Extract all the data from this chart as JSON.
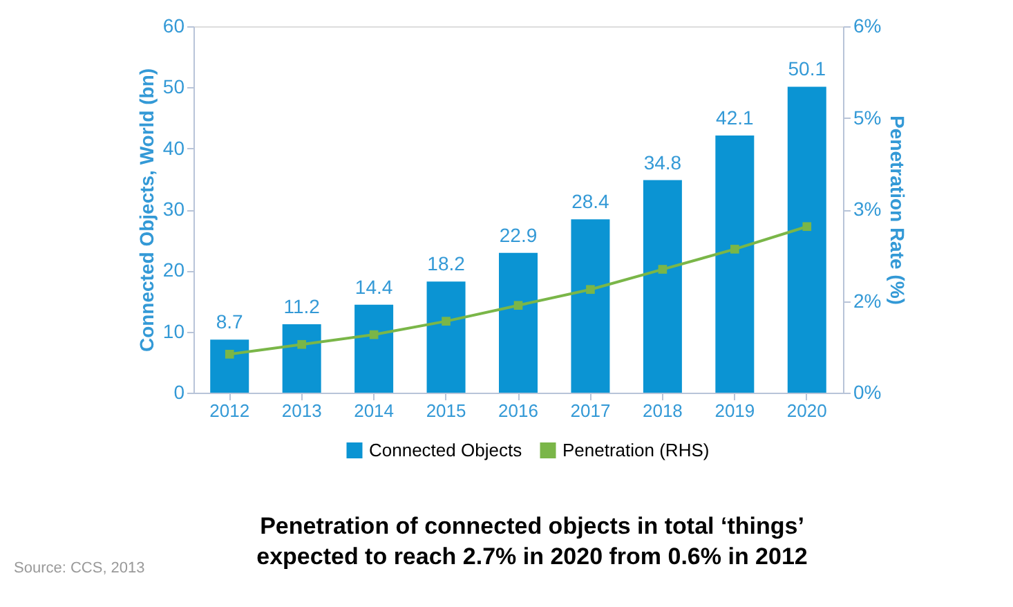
{
  "chart_data": {
    "type": "bar",
    "title": "Penetration of connected objects in total ‘things’\nexpected to reach 2.7% in 2020 from 0.6% in 2012",
    "categories": [
      "2012",
      "2013",
      "2014",
      "2015",
      "2016",
      "2017",
      "2018",
      "2019",
      "2020"
    ],
    "series": [
      {
        "name": "Connected Objects",
        "color": "#0b94d3",
        "values": [
          8.7,
          11.2,
          14.4,
          18.2,
          22.9,
          28.4,
          34.8,
          42.1,
          50.1
        ],
        "value_labels": [
          "8.7",
          "11.2",
          "14.4",
          "18.2",
          "22.9",
          "28.4",
          "34.8",
          "42.1",
          "50.1"
        ]
      },
      {
        "name": "Penetration (RHS)",
        "type": "line",
        "axis": "y2",
        "color": "#7ab648",
        "marker": "square",
        "values": [
          0.63,
          0.79,
          0.95,
          1.17,
          1.43,
          1.69,
          2.02,
          2.35,
          2.72
        ]
      }
    ],
    "ylabel": "Connected Objects, World (bn)",
    "y2label": "Penetration Rate (%)",
    "ylim": [
      0,
      60
    ],
    "yticks": [
      0,
      10,
      20,
      30,
      40,
      50,
      60
    ],
    "y2lim": [
      0,
      6
    ],
    "y2ticks": [
      {
        "value": 0,
        "label": "0%"
      },
      {
        "value": 1.5,
        "label": "2%"
      },
      {
        "value": 3,
        "label": "3%"
      },
      {
        "value": 4.5,
        "label": "5%"
      },
      {
        "value": 6,
        "label": "6%"
      }
    ],
    "grid": false,
    "legend": "bottom",
    "annotations": [
      "Source: CCS, 2013"
    ]
  }
}
